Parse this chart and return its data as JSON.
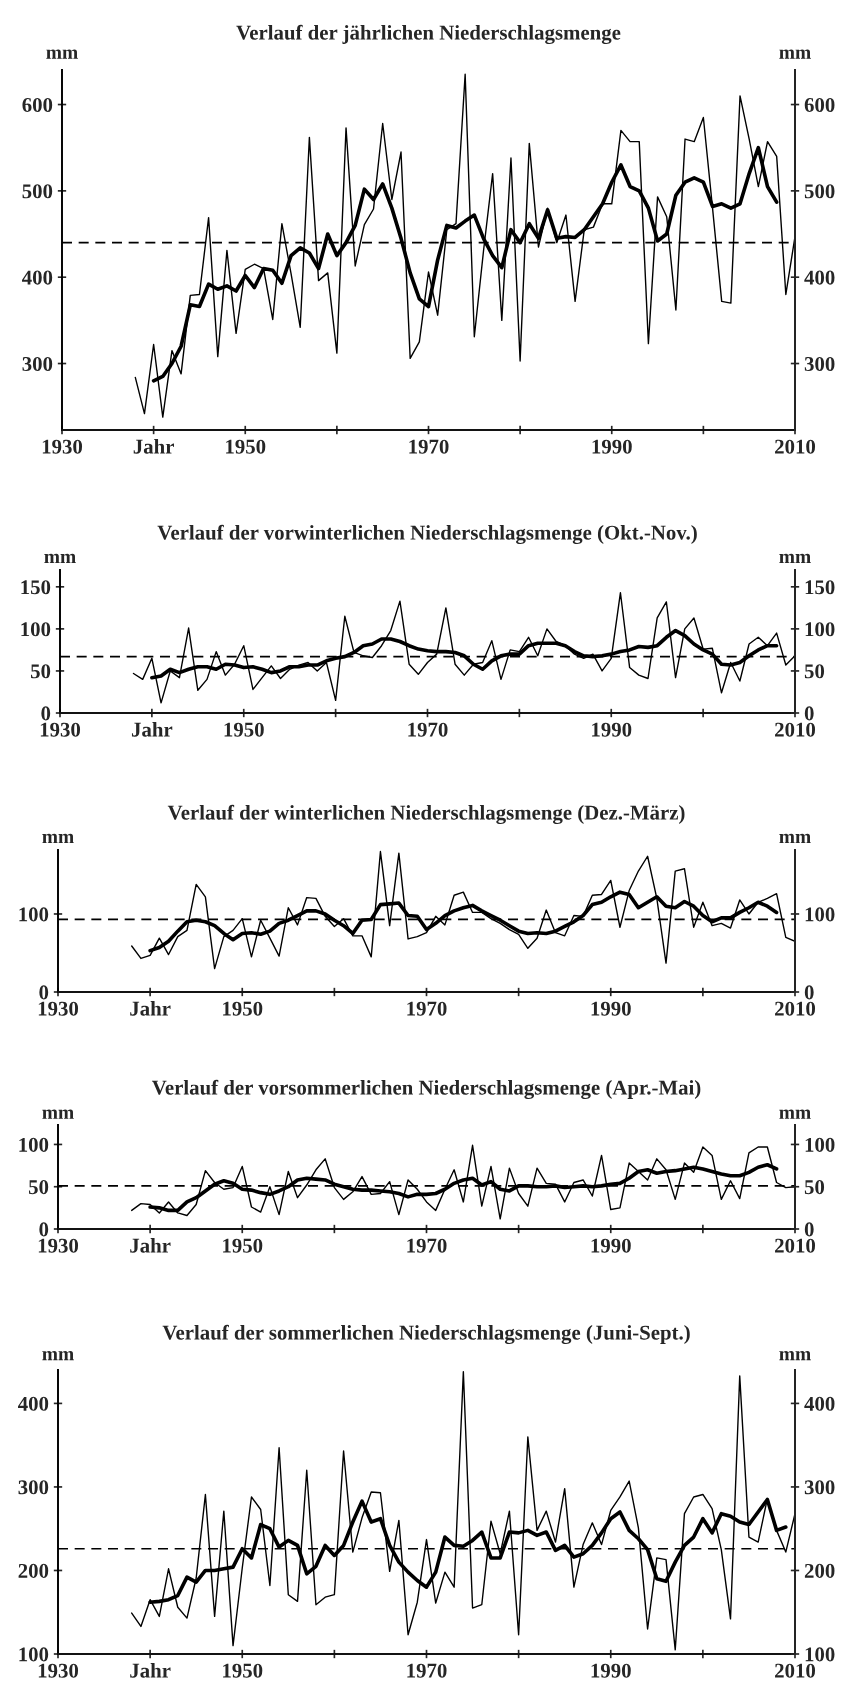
{
  "chart_data": [
    {
      "type": "line",
      "title": "Verlauf der jährlichen Niederschlagsmenge",
      "ylabel": "mm",
      "y2label": "mm",
      "xlim": [
        1930,
        2010
      ],
      "xticks": [
        1930,
        {
          "value": 1940,
          "label": "Jahr"
        },
        1950,
        {
          "value": 1960,
          "label": null
        },
        1970,
        {
          "value": 1980,
          "label": null
        },
        1990,
        {
          "value": 2000,
          "label": null
        },
        2010
      ],
      "ylim": [
        223,
        640
      ],
      "yticks": [
        300,
        400,
        500,
        600
      ],
      "y2lim": [
        223,
        640
      ],
      "y2ticks": [
        300,
        400,
        500,
        600
      ],
      "ref_lines": [
        {
          "axis": "y",
          "value": 440,
          "line_style": "dashed",
          "color": "#000000"
        }
      ],
      "series": [
        {
          "color": "#000000",
          "x": [
            1938,
            1939,
            1940,
            1941,
            1942,
            1943,
            1944,
            1945,
            1946,
            1947,
            1948,
            1949,
            1950,
            1951,
            1952,
            1953,
            1954,
            1955,
            1956,
            1957,
            1958,
            1959,
            1960,
            1961,
            1962,
            1963,
            1964,
            1965,
            1966,
            1967,
            1968,
            1969,
            1970,
            1971,
            1972,
            1973,
            1974,
            1975,
            1976,
            1977,
            1978,
            1979,
            1980,
            1981,
            1982,
            1983,
            1984,
            1985,
            1986,
            1987,
            1988,
            1989,
            1990,
            1991,
            1992,
            1993,
            1994,
            1995,
            1996,
            1997,
            1998,
            1999,
            2000,
            2001,
            2002,
            2003,
            2004,
            2005,
            2006,
            2007,
            2008,
            2009,
            2010
          ],
          "values": [
            284,
            242,
            322,
            238,
            315,
            288,
            379,
            380,
            469,
            308,
            431,
            335,
            409,
            415,
            410,
            351,
            462,
            404,
            342,
            562,
            396,
            405,
            312,
            573,
            413,
            461,
            479,
            578,
            490,
            545,
            306,
            325,
            406,
            356,
            455,
            462,
            635,
            331,
            430,
            520,
            350,
            538,
            303,
            555,
            435,
            480,
            440,
            472,
            372,
            455,
            458,
            485,
            485,
            570,
            557,
            557,
            323,
            493,
            470,
            362,
            560,
            557,
            585,
            480,
            372,
            370,
            610,
            560,
            505,
            557,
            540,
            380,
            447
          ]
        },
        {
          "color": "#000000",
          "x": [
            1940,
            1941,
            1942,
            1943,
            1944,
            1945,
            1946,
            1947,
            1948,
            1949,
            1950,
            1951,
            1952,
            1953,
            1954,
            1955,
            1956,
            1957,
            1958,
            1959,
            1960,
            1961,
            1962,
            1963,
            1964,
            1965,
            1966,
            1967,
            1968,
            1969,
            1970,
            1971,
            1972,
            1973,
            1974,
            1975,
            1976,
            1977,
            1978,
            1979,
            1980,
            1981,
            1982,
            1983,
            1984,
            1985,
            1986,
            1987,
            1988,
            1989,
            1990,
            1991,
            1992,
            1993,
            1994,
            1995,
            1996,
            1997,
            1998,
            1999,
            2000,
            2001,
            2002,
            2003,
            2004,
            2005,
            2006,
            2007,
            2008
          ],
          "values": [
            280,
            285,
            300,
            320,
            368,
            366,
            392,
            386,
            390,
            384,
            402,
            388,
            410,
            408,
            393,
            425,
            434,
            428,
            410,
            450,
            425,
            440,
            460,
            502,
            490,
            508,
            480,
            445,
            405,
            375,
            366,
            420,
            460,
            457,
            465,
            472,
            445,
            425,
            411,
            455,
            440,
            462,
            445,
            478,
            445,
            447,
            446,
            455,
            470,
            485,
            510,
            530,
            505,
            500,
            480,
            442,
            450,
            495,
            510,
            515,
            510,
            482,
            485,
            480,
            485,
            520,
            550,
            505,
            487
          ]
        }
      ]
    },
    {
      "type": "line",
      "title": "Verlauf der vorwinterlichen Niederschlagsmenge (Okt.-Nov.)",
      "ylabel": "mm",
      "y2label": "mm",
      "xlim": [
        1930,
        2010
      ],
      "xticks": [
        1930,
        {
          "value": 1940,
          "label": "Jahr"
        },
        1950,
        {
          "value": 1960,
          "label": null
        },
        1970,
        {
          "value": 1980,
          "label": null
        },
        1990,
        {
          "value": 2000,
          "label": null
        },
        2010
      ],
      "ylim": [
        0,
        170
      ],
      "yticks": [
        0,
        50,
        100,
        150
      ],
      "y2lim": [
        0,
        170
      ],
      "y2ticks": [
        0,
        50,
        100,
        150
      ],
      "ref_lines": [
        {
          "axis": "y",
          "value": 67,
          "line_style": "dashed",
          "color": "#000000"
        }
      ],
      "series": [
        {
          "color": "#000000",
          "x": [
            1938,
            1939,
            1940,
            1941,
            1942,
            1943,
            1944,
            1945,
            1946,
            1947,
            1948,
            1949,
            1950,
            1951,
            1952,
            1953,
            1954,
            1955,
            1956,
            1957,
            1958,
            1959,
            1960,
            1961,
            1962,
            1963,
            1964,
            1965,
            1966,
            1967,
            1968,
            1969,
            1970,
            1971,
            1972,
            1973,
            1974,
            1975,
            1976,
            1977,
            1978,
            1979,
            1980,
            1981,
            1982,
            1983,
            1984,
            1985,
            1986,
            1987,
            1988,
            1989,
            1990,
            1991,
            1992,
            1993,
            1994,
            1995,
            1996,
            1997,
            1998,
            1999,
            2000,
            2001,
            2002,
            2003,
            2004,
            2005,
            2006,
            2007,
            2008,
            2009,
            2010
          ],
          "values": [
            47,
            40,
            65,
            12,
            50,
            42,
            101,
            27,
            40,
            73,
            45,
            58,
            80,
            28,
            42,
            56,
            41,
            52,
            57,
            60,
            50,
            60,
            15,
            115,
            72,
            68,
            66,
            80,
            98,
            133,
            58,
            46,
            60,
            70,
            125,
            58,
            45,
            58,
            60,
            86,
            40,
            75,
            73,
            90,
            68,
            100,
            85,
            80,
            70,
            65,
            70,
            50,
            65,
            143,
            54,
            45,
            41,
            113,
            132,
            42,
            100,
            113,
            76,
            77,
            24,
            60,
            38,
            82,
            90,
            80,
            95,
            57,
            68
          ]
        },
        {
          "color": "#000000",
          "x": [
            1940,
            1941,
            1942,
            1943,
            1944,
            1945,
            1946,
            1947,
            1948,
            1949,
            1950,
            1951,
            1952,
            1953,
            1954,
            1955,
            1956,
            1957,
            1958,
            1959,
            1960,
            1961,
            1962,
            1963,
            1964,
            1965,
            1966,
            1967,
            1968,
            1969,
            1970,
            1971,
            1972,
            1973,
            1974,
            1975,
            1976,
            1977,
            1978,
            1979,
            1980,
            1981,
            1982,
            1983,
            1984,
            1985,
            1986,
            1987,
            1988,
            1989,
            1990,
            1991,
            1992,
            1993,
            1994,
            1995,
            1996,
            1997,
            1998,
            1999,
            2000,
            2001,
            2002,
            2003,
            2004,
            2005,
            2006,
            2007,
            2008
          ],
          "values": [
            42,
            44,
            52,
            48,
            52,
            55,
            55,
            52,
            58,
            57,
            54,
            55,
            52,
            48,
            50,
            55,
            55,
            57,
            57,
            62,
            65,
            67,
            72,
            80,
            82,
            88,
            88,
            85,
            80,
            76,
            74,
            73,
            73,
            72,
            68,
            58,
            52,
            62,
            68,
            70,
            70,
            80,
            83,
            83,
            83,
            80,
            73,
            68,
            67,
            68,
            70,
            73,
            75,
            79,
            78,
            80,
            90,
            98,
            92,
            82,
            75,
            70,
            58,
            57,
            60,
            68,
            75,
            80,
            80
          ]
        }
      ]
    },
    {
      "type": "line",
      "title": "Verlauf der winterlichen Niederschlagsmenge (Dez.-März)",
      "ylabel": "mm",
      "y2label": "mm",
      "xlim": [
        1930,
        2010
      ],
      "xticks": [
        1930,
        {
          "value": 1940,
          "label": "Jahr"
        },
        1950,
        {
          "value": 1960,
          "label": null
        },
        1970,
        {
          "value": 1980,
          "label": null
        },
        1990,
        {
          "value": 2000,
          "label": null
        },
        2010
      ],
      "ylim": [
        0,
        182
      ],
      "yticks": [
        0,
        100
      ],
      "y2lim": [
        0,
        182
      ],
      "y2ticks": [
        0,
        100
      ],
      "ref_lines": [
        {
          "axis": "y",
          "value": 93,
          "line_style": "dashed",
          "color": "#000000"
        }
      ],
      "series": [
        {
          "color": "#000000",
          "x": [
            1938,
            1939,
            1940,
            1941,
            1942,
            1943,
            1944,
            1945,
            1946,
            1947,
            1948,
            1949,
            1950,
            1951,
            1952,
            1953,
            1954,
            1955,
            1956,
            1957,
            1958,
            1959,
            1960,
            1961,
            1962,
            1963,
            1964,
            1965,
            1966,
            1967,
            1968,
            1969,
            1970,
            1971,
            1972,
            1973,
            1974,
            1975,
            1976,
            1977,
            1978,
            1979,
            1980,
            1981,
            1982,
            1983,
            1984,
            1985,
            1986,
            1987,
            1988,
            1989,
            1990,
            1991,
            1992,
            1993,
            1994,
            1995,
            1996,
            1997,
            1998,
            1999,
            2000,
            2001,
            2002,
            2003,
            2004,
            2005,
            2006,
            2007,
            2008,
            2009,
            2010
          ],
          "values": [
            59,
            43,
            47,
            69,
            48,
            71,
            79,
            138,
            122,
            30,
            71,
            79,
            94,
            45,
            92,
            69,
            46,
            108,
            86,
            121,
            120,
            97,
            84,
            94,
            72,
            72,
            45,
            180,
            85,
            178,
            68,
            71,
            76,
            97,
            86,
            124,
            128,
            102,
            102,
            94,
            88,
            80,
            74,
            56,
            69,
            105,
            76,
            72,
            98,
            97,
            124,
            125,
            143,
            83,
            130,
            155,
            174,
            120,
            37,
            155,
            158,
            83,
            115,
            85,
            88,
            82,
            118,
            100,
            115,
            120,
            126,
            70,
            65
          ]
        },
        {
          "color": "#000000",
          "x": [
            1940,
            1941,
            1942,
            1943,
            1944,
            1945,
            1946,
            1947,
            1948,
            1949,
            1950,
            1951,
            1952,
            1953,
            1954,
            1955,
            1956,
            1957,
            1958,
            1959,
            1960,
            1961,
            1962,
            1963,
            1964,
            1965,
            1966,
            1967,
            1968,
            1969,
            1970,
            1971,
            1972,
            1973,
            1974,
            1975,
            1976,
            1977,
            1978,
            1979,
            1980,
            1981,
            1982,
            1983,
            1984,
            1985,
            1986,
            1987,
            1988,
            1989,
            1990,
            1991,
            1992,
            1993,
            1994,
            1995,
            1996,
            1997,
            1998,
            1999,
            2000,
            2001,
            2002,
            2003,
            2004,
            2005,
            2006,
            2007,
            2008
          ],
          "values": [
            53,
            57,
            65,
            78,
            90,
            92,
            90,
            85,
            75,
            67,
            75,
            76,
            74,
            78,
            88,
            92,
            98,
            104,
            104,
            100,
            92,
            85,
            75,
            92,
            93,
            112,
            113,
            114,
            98,
            97,
            80,
            88,
            98,
            104,
            108,
            111,
            104,
            98,
            92,
            85,
            78,
            75,
            76,
            75,
            78,
            84,
            90,
            98,
            112,
            115,
            122,
            128,
            125,
            108,
            115,
            122,
            110,
            108,
            116,
            110,
            98,
            90,
            95,
            95,
            102,
            108,
            115,
            110,
            102
          ]
        }
      ]
    },
    {
      "type": "line",
      "title": "Verlauf der vorsommerlichen Niederschlagsmenge (Apr.-Mai)",
      "ylabel": "mm",
      "y2label": "mm",
      "xlim": [
        1930,
        2010
      ],
      "xticks": [
        1930,
        {
          "value": 1940,
          "label": "Jahr"
        },
        1950,
        {
          "value": 1960,
          "label": null
        },
        1970,
        {
          "value": 1980,
          "label": null
        },
        1990,
        {
          "value": 2000,
          "label": null
        },
        2010
      ],
      "ylim": [
        0,
        123
      ],
      "yticks": [
        0,
        50,
        100
      ],
      "y2lim": [
        0,
        123
      ],
      "y2ticks": [
        0,
        50,
        100
      ],
      "ref_lines": [
        {
          "axis": "y",
          "value": 51,
          "line_style": "dashed",
          "color": "#000000"
        }
      ],
      "series": [
        {
          "color": "#000000",
          "x": [
            1938,
            1939,
            1940,
            1941,
            1942,
            1943,
            1944,
            1945,
            1946,
            1947,
            1948,
            1949,
            1950,
            1951,
            1952,
            1953,
            1954,
            1955,
            1956,
            1957,
            1958,
            1959,
            1960,
            1961,
            1962,
            1963,
            1964,
            1965,
            1966,
            1967,
            1968,
            1969,
            1970,
            1971,
            1972,
            1973,
            1974,
            1975,
            1976,
            1977,
            1978,
            1979,
            1980,
            1981,
            1982,
            1983,
            1984,
            1985,
            1986,
            1987,
            1988,
            1989,
            1990,
            1991,
            1992,
            1993,
            1994,
            1995,
            1996,
            1997,
            1998,
            1999,
            2000,
            2001,
            2002,
            2003,
            2004,
            2005,
            2006,
            2007,
            2008,
            2009,
            2010
          ],
          "values": [
            22,
            30,
            29,
            19,
            32,
            19,
            16,
            29,
            69,
            55,
            47,
            49,
            74,
            26,
            20,
            50,
            17,
            68,
            37,
            52,
            70,
            83,
            49,
            35,
            44,
            62,
            41,
            42,
            56,
            17,
            58,
            47,
            32,
            22,
            47,
            70,
            32,
            99,
            27,
            74,
            12,
            72,
            42,
            27,
            72,
            54,
            53,
            32,
            55,
            58,
            39,
            87,
            23,
            25,
            78,
            68,
            58,
            83,
            70,
            35,
            78,
            67,
            97,
            87,
            35,
            57,
            36,
            90,
            97,
            97,
            55,
            49,
            50
          ]
        },
        {
          "color": "#000000",
          "x": [
            1940,
            1941,
            1942,
            1943,
            1944,
            1945,
            1946,
            1947,
            1948,
            1949,
            1950,
            1951,
            1952,
            1953,
            1954,
            1955,
            1956,
            1957,
            1958,
            1959,
            1960,
            1961,
            1962,
            1963,
            1964,
            1965,
            1966,
            1967,
            1968,
            1969,
            1970,
            1971,
            1972,
            1973,
            1974,
            1975,
            1976,
            1977,
            1978,
            1979,
            1980,
            1981,
            1982,
            1983,
            1984,
            1985,
            1986,
            1987,
            1988,
            1989,
            1990,
            1991,
            1992,
            1993,
            1994,
            1995,
            1996,
            1997,
            1998,
            1999,
            2000,
            2001,
            2002,
            2003,
            2004,
            2005,
            2006,
            2007,
            2008
          ],
          "values": [
            26,
            25,
            22,
            22,
            32,
            37,
            45,
            53,
            57,
            54,
            47,
            46,
            43,
            41,
            45,
            50,
            58,
            60,
            59,
            58,
            53,
            50,
            47,
            46,
            46,
            45,
            44,
            42,
            38,
            41,
            41,
            42,
            47,
            54,
            58,
            60,
            52,
            56,
            47,
            45,
            51,
            51,
            50,
            50,
            51,
            49,
            50,
            51,
            50,
            51,
            53,
            54,
            60,
            68,
            70,
            66,
            68,
            69,
            71,
            73,
            71,
            68,
            65,
            63,
            63,
            67,
            73,
            76,
            71
          ]
        }
      ]
    },
    {
      "type": "line",
      "title": "Verlauf der sommerlichen Niederschlagsmenge (Juni-Sept.)",
      "ylabel": "mm",
      "y2label": "mm",
      "xlim": [
        1930,
        2010
      ],
      "xticks": [
        1930,
        {
          "value": 1940,
          "label": "Jahr"
        },
        1950,
        {
          "value": 1960,
          "label": null
        },
        1970,
        {
          "value": 1980,
          "label": null
        },
        1990,
        {
          "value": 2000,
          "label": null
        },
        2010
      ],
      "ylim": [
        100,
        440
      ],
      "yticks": [
        100,
        200,
        300,
        400
      ],
      "y2lim": [
        100,
        440
      ],
      "y2ticks": [
        100,
        200,
        300,
        400
      ],
      "ref_lines": [
        {
          "axis": "y",
          "value": 226,
          "line_style": "dashed",
          "color": "#000000"
        }
      ],
      "series": [
        {
          "color": "#000000",
          "x": [
            1938,
            1939,
            1940,
            1941,
            1942,
            1943,
            1944,
            1945,
            1946,
            1947,
            1948,
            1949,
            1950,
            1951,
            1952,
            1953,
            1954,
            1955,
            1956,
            1957,
            1958,
            1959,
            1960,
            1961,
            1962,
            1963,
            1964,
            1965,
            1966,
            1967,
            1968,
            1969,
            1970,
            1971,
            1972,
            1973,
            1974,
            1975,
            1976,
            1977,
            1978,
            1979,
            1980,
            1981,
            1982,
            1983,
            1984,
            1985,
            1986,
            1987,
            1988,
            1989,
            1990,
            1991,
            1992,
            1993,
            1994,
            1995,
            1996,
            1997,
            1998,
            1999,
            2000,
            2001,
            2002,
            2003,
            2004,
            2005,
            2006,
            2007,
            2008,
            2009,
            2010
          ],
          "values": [
            149,
            133,
            165,
            145,
            202,
            156,
            143,
            191,
            291,
            145,
            271,
            110,
            203,
            288,
            273,
            182,
            347,
            171,
            163,
            320,
            159,
            168,
            171,
            343,
            222,
            263,
            294,
            293,
            199,
            260,
            123,
            162,
            237,
            161,
            198,
            180,
            438,
            155,
            159,
            259,
            220,
            271,
            123,
            360,
            248,
            271,
            234,
            298,
            180,
            231,
            257,
            231,
            272,
            288,
            307,
            251,
            130,
            215,
            213,
            105,
            268,
            288,
            291,
            274,
            225,
            142,
            433,
            240,
            234,
            286,
            248,
            222,
            268
          ]
        },
        {
          "color": "#000000",
          "x": [
            1940,
            1941,
            1942,
            1943,
            1944,
            1945,
            1946,
            1947,
            1948,
            1949,
            1950,
            1951,
            1952,
            1953,
            1954,
            1955,
            1956,
            1957,
            1958,
            1959,
            1960,
            1961,
            1962,
            1963,
            1964,
            1965,
            1966,
            1967,
            1968,
            1969,
            1970,
            1971,
            1972,
            1973,
            1974,
            1975,
            1976,
            1977,
            1978,
            1979,
            1980,
            1981,
            1982,
            1983,
            1984,
            1985,
            1986,
            1987,
            1988,
            1989,
            1990,
            1991,
            1992,
            1993,
            1994,
            1995,
            1996,
            1997,
            1998,
            1999,
            2000,
            2001,
            2002,
            2003,
            2004,
            2005,
            2006,
            2007,
            2008,
            2009
          ],
          "values": [
            162,
            163,
            165,
            170,
            192,
            186,
            200,
            200,
            202,
            204,
            226,
            215,
            255,
            250,
            228,
            236,
            230,
            196,
            205,
            230,
            218,
            230,
            258,
            283,
            258,
            262,
            230,
            210,
            198,
            188,
            180,
            198,
            240,
            230,
            229,
            236,
            246,
            215,
            215,
            246,
            245,
            248,
            242,
            246,
            224,
            230,
            216,
            220,
            230,
            245,
            262,
            270,
            248,
            238,
            225,
            190,
            187,
            210,
            230,
            240,
            262,
            245,
            268,
            265,
            258,
            255,
            270,
            285,
            248,
            252
          ]
        }
      ]
    }
  ]
}
